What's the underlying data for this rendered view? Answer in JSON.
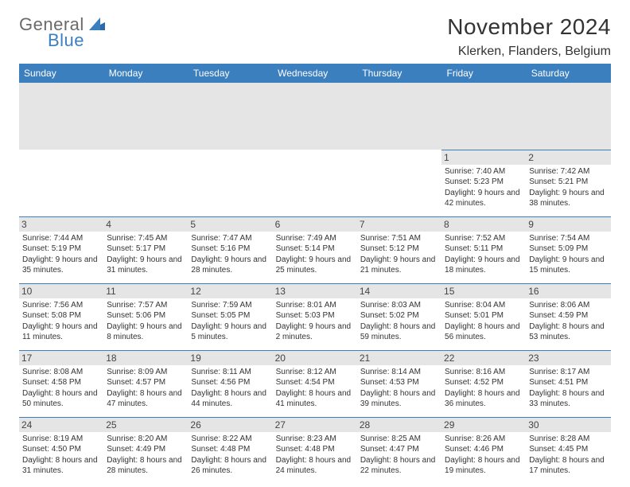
{
  "logo": {
    "word1": "General",
    "word2": "Blue"
  },
  "title": "November 2024",
  "location": "Klerken, Flanders, Belgium",
  "day_headers": [
    "Sunday",
    "Monday",
    "Tuesday",
    "Wednesday",
    "Thursday",
    "Friday",
    "Saturday"
  ],
  "header_bg": "#3b7fbf",
  "weeks": [
    [
      null,
      null,
      null,
      null,
      null,
      {
        "n": "1",
        "sunrise": "Sunrise: 7:40 AM",
        "sunset": "Sunset: 5:23 PM",
        "daylight": "Daylight: 9 hours and 42 minutes."
      },
      {
        "n": "2",
        "sunrise": "Sunrise: 7:42 AM",
        "sunset": "Sunset: 5:21 PM",
        "daylight": "Daylight: 9 hours and 38 minutes."
      }
    ],
    [
      {
        "n": "3",
        "sunrise": "Sunrise: 7:44 AM",
        "sunset": "Sunset: 5:19 PM",
        "daylight": "Daylight: 9 hours and 35 minutes."
      },
      {
        "n": "4",
        "sunrise": "Sunrise: 7:45 AM",
        "sunset": "Sunset: 5:17 PM",
        "daylight": "Daylight: 9 hours and 31 minutes."
      },
      {
        "n": "5",
        "sunrise": "Sunrise: 7:47 AM",
        "sunset": "Sunset: 5:16 PM",
        "daylight": "Daylight: 9 hours and 28 minutes."
      },
      {
        "n": "6",
        "sunrise": "Sunrise: 7:49 AM",
        "sunset": "Sunset: 5:14 PM",
        "daylight": "Daylight: 9 hours and 25 minutes."
      },
      {
        "n": "7",
        "sunrise": "Sunrise: 7:51 AM",
        "sunset": "Sunset: 5:12 PM",
        "daylight": "Daylight: 9 hours and 21 minutes."
      },
      {
        "n": "8",
        "sunrise": "Sunrise: 7:52 AM",
        "sunset": "Sunset: 5:11 PM",
        "daylight": "Daylight: 9 hours and 18 minutes."
      },
      {
        "n": "9",
        "sunrise": "Sunrise: 7:54 AM",
        "sunset": "Sunset: 5:09 PM",
        "daylight": "Daylight: 9 hours and 15 minutes."
      }
    ],
    [
      {
        "n": "10",
        "sunrise": "Sunrise: 7:56 AM",
        "sunset": "Sunset: 5:08 PM",
        "daylight": "Daylight: 9 hours and 11 minutes."
      },
      {
        "n": "11",
        "sunrise": "Sunrise: 7:57 AM",
        "sunset": "Sunset: 5:06 PM",
        "daylight": "Daylight: 9 hours and 8 minutes."
      },
      {
        "n": "12",
        "sunrise": "Sunrise: 7:59 AM",
        "sunset": "Sunset: 5:05 PM",
        "daylight": "Daylight: 9 hours and 5 minutes."
      },
      {
        "n": "13",
        "sunrise": "Sunrise: 8:01 AM",
        "sunset": "Sunset: 5:03 PM",
        "daylight": "Daylight: 9 hours and 2 minutes."
      },
      {
        "n": "14",
        "sunrise": "Sunrise: 8:03 AM",
        "sunset": "Sunset: 5:02 PM",
        "daylight": "Daylight: 8 hours and 59 minutes."
      },
      {
        "n": "15",
        "sunrise": "Sunrise: 8:04 AM",
        "sunset": "Sunset: 5:01 PM",
        "daylight": "Daylight: 8 hours and 56 minutes."
      },
      {
        "n": "16",
        "sunrise": "Sunrise: 8:06 AM",
        "sunset": "Sunset: 4:59 PM",
        "daylight": "Daylight: 8 hours and 53 minutes."
      }
    ],
    [
      {
        "n": "17",
        "sunrise": "Sunrise: 8:08 AM",
        "sunset": "Sunset: 4:58 PM",
        "daylight": "Daylight: 8 hours and 50 minutes."
      },
      {
        "n": "18",
        "sunrise": "Sunrise: 8:09 AM",
        "sunset": "Sunset: 4:57 PM",
        "daylight": "Daylight: 8 hours and 47 minutes."
      },
      {
        "n": "19",
        "sunrise": "Sunrise: 8:11 AM",
        "sunset": "Sunset: 4:56 PM",
        "daylight": "Daylight: 8 hours and 44 minutes."
      },
      {
        "n": "20",
        "sunrise": "Sunrise: 8:12 AM",
        "sunset": "Sunset: 4:54 PM",
        "daylight": "Daylight: 8 hours and 41 minutes."
      },
      {
        "n": "21",
        "sunrise": "Sunrise: 8:14 AM",
        "sunset": "Sunset: 4:53 PM",
        "daylight": "Daylight: 8 hours and 39 minutes."
      },
      {
        "n": "22",
        "sunrise": "Sunrise: 8:16 AM",
        "sunset": "Sunset: 4:52 PM",
        "daylight": "Daylight: 8 hours and 36 minutes."
      },
      {
        "n": "23",
        "sunrise": "Sunrise: 8:17 AM",
        "sunset": "Sunset: 4:51 PM",
        "daylight": "Daylight: 8 hours and 33 minutes."
      }
    ],
    [
      {
        "n": "24",
        "sunrise": "Sunrise: 8:19 AM",
        "sunset": "Sunset: 4:50 PM",
        "daylight": "Daylight: 8 hours and 31 minutes."
      },
      {
        "n": "25",
        "sunrise": "Sunrise: 8:20 AM",
        "sunset": "Sunset: 4:49 PM",
        "daylight": "Daylight: 8 hours and 28 minutes."
      },
      {
        "n": "26",
        "sunrise": "Sunrise: 8:22 AM",
        "sunset": "Sunset: 4:48 PM",
        "daylight": "Daylight: 8 hours and 26 minutes."
      },
      {
        "n": "27",
        "sunrise": "Sunrise: 8:23 AM",
        "sunset": "Sunset: 4:48 PM",
        "daylight": "Daylight: 8 hours and 24 minutes."
      },
      {
        "n": "28",
        "sunrise": "Sunrise: 8:25 AM",
        "sunset": "Sunset: 4:47 PM",
        "daylight": "Daylight: 8 hours and 22 minutes."
      },
      {
        "n": "29",
        "sunrise": "Sunrise: 8:26 AM",
        "sunset": "Sunset: 4:46 PM",
        "daylight": "Daylight: 8 hours and 19 minutes."
      },
      {
        "n": "30",
        "sunrise": "Sunrise: 8:28 AM",
        "sunset": "Sunset: 4:45 PM",
        "daylight": "Daylight: 8 hours and 17 minutes."
      }
    ]
  ]
}
